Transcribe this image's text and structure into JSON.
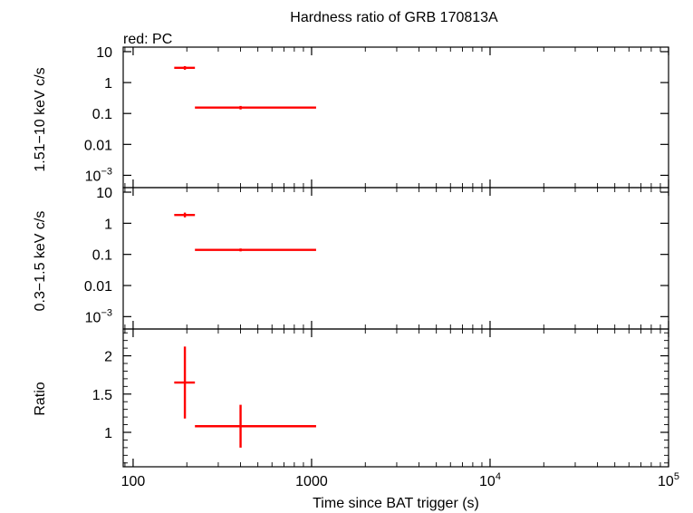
{
  "chart_data": {
    "type": "scatter",
    "title": "Hardness ratio of GRB 170813A",
    "legend": "red: PC",
    "xlabel": "Time since BAT trigger (s)",
    "x_scale": "log",
    "xlim": [
      88,
      100000
    ],
    "x_ticks": [
      {
        "value": 100,
        "base": "100",
        "exp": ""
      },
      {
        "value": 1000,
        "base": "1000",
        "exp": ""
      },
      {
        "value": 10000,
        "base": "10",
        "exp": "4"
      },
      {
        "value": 100000,
        "base": "10",
        "exp": "5"
      }
    ],
    "color": "#ff0000",
    "panels": [
      {
        "id": "hard",
        "ylabel": "1.51−10 keV c/s",
        "y_scale": "log",
        "ylim": [
          0.0004,
          14
        ],
        "y_ticks": [
          {
            "value": 10,
            "base": "10",
            "exp": ""
          },
          {
            "value": 1,
            "base": "1",
            "exp": ""
          },
          {
            "value": 0.1,
            "base": "0.1",
            "exp": ""
          },
          {
            "value": 0.01,
            "base": "0.01",
            "exp": ""
          },
          {
            "value": 0.001,
            "base": "10",
            "exp": "−3"
          }
        ],
        "points": [
          {
            "x": 195,
            "xlo": 170,
            "xhi": 222,
            "y": 3.0,
            "ylo": 2.6,
            "yhi": 3.4
          },
          {
            "x": 400,
            "xlo": 222,
            "xhi": 1060,
            "y": 0.155,
            "ylo": 0.135,
            "yhi": 0.175
          }
        ]
      },
      {
        "id": "soft",
        "ylabel": "0.3−1.5 keV c/s",
        "y_scale": "log",
        "ylim": [
          0.0004,
          14
        ],
        "y_ticks": [
          {
            "value": 10,
            "base": "10",
            "exp": ""
          },
          {
            "value": 1,
            "base": "1",
            "exp": ""
          },
          {
            "value": 0.1,
            "base": "0.1",
            "exp": ""
          },
          {
            "value": 0.01,
            "base": "0.01",
            "exp": ""
          },
          {
            "value": 0.001,
            "base": "10",
            "exp": "−3"
          }
        ],
        "points": [
          {
            "x": 195,
            "xlo": 170,
            "xhi": 222,
            "y": 1.85,
            "ylo": 1.55,
            "yhi": 2.2
          },
          {
            "x": 400,
            "xlo": 222,
            "xhi": 1060,
            "y": 0.14,
            "ylo": 0.125,
            "yhi": 0.155
          }
        ]
      },
      {
        "id": "ratio",
        "ylabel": "Ratio",
        "y_scale": "linear",
        "ylim": [
          0.55,
          2.35
        ],
        "y_ticks": [
          {
            "value": 2,
            "base": "2",
            "exp": ""
          },
          {
            "value": 1.5,
            "base": "1.5",
            "exp": ""
          },
          {
            "value": 1,
            "base": "1",
            "exp": ""
          }
        ],
        "points": [
          {
            "x": 195,
            "xlo": 170,
            "xhi": 222,
            "y": 1.65,
            "ylo": 1.18,
            "yhi": 2.12
          },
          {
            "x": 400,
            "xlo": 222,
            "xhi": 1060,
            "y": 1.08,
            "ylo": 0.8,
            "yhi": 1.36
          }
        ]
      }
    ]
  }
}
